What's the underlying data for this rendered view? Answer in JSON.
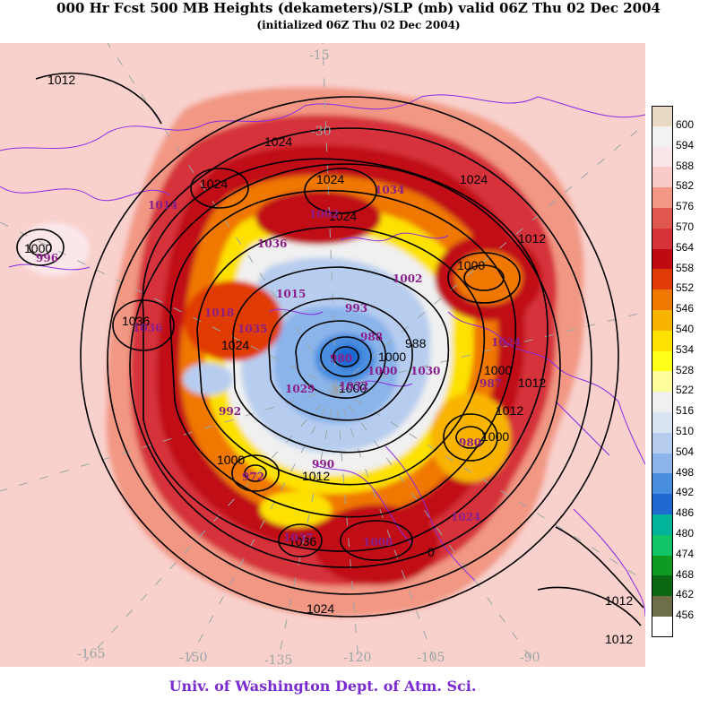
{
  "title": "000 Hr Fcst 500 MB Heights (dekameters)/SLP (mb) valid 06Z Thu 02 Dec 2004",
  "subtitle": "(initialized 06Z Thu 02 Dec 2004)",
  "credit": "Univ. of Washington Dept. of Atm. Sci.",
  "legend": {
    "items": [
      {
        "label": "600",
        "color": "#ead9c4"
      },
      {
        "label": "594",
        "color": "#f2f2f2"
      },
      {
        "label": "588",
        "color": "#fbe7ea"
      },
      {
        "label": "582",
        "color": "#f8cbc8"
      },
      {
        "label": "576",
        "color": "#f29784"
      },
      {
        "label": "570",
        "color": "#e0574f"
      },
      {
        "label": "564",
        "color": "#d6333a"
      },
      {
        "label": "558",
        "color": "#c00a12"
      },
      {
        "label": "552",
        "color": "#e03a06"
      },
      {
        "label": "546",
        "color": "#f07800"
      },
      {
        "label": "540",
        "color": "#f8b400"
      },
      {
        "label": "534",
        "color": "#fde100"
      },
      {
        "label": "528",
        "color": "#ffff1a"
      },
      {
        "label": "522",
        "color": "#fdfd9c"
      },
      {
        "label": "516",
        "color": "#f0f0f0"
      },
      {
        "label": "510",
        "color": "#d9e4f2"
      },
      {
        "label": "504",
        "color": "#b7cdef"
      },
      {
        "label": "498",
        "color": "#8bb4ea"
      },
      {
        "label": "492",
        "color": "#4a8ee0"
      },
      {
        "label": "486",
        "color": "#1f6ad1"
      },
      {
        "label": "480",
        "color": "#00b49c"
      },
      {
        "label": "474",
        "color": "#12c468"
      },
      {
        "label": "468",
        "color": "#0f9a22"
      },
      {
        "label": "462",
        "color": "#0b6813"
      },
      {
        "label": "456",
        "color": "#6e6e48"
      },
      {
        "label": "",
        "color": "#ffffff"
      }
    ]
  },
  "slp_labels": [
    {
      "text": "1012"
    },
    {
      "text": "1024"
    },
    {
      "text": "1024"
    },
    {
      "text": "1024"
    },
    {
      "text": "1024"
    },
    {
      "text": "1024"
    },
    {
      "text": "1012"
    },
    {
      "text": "1000"
    },
    {
      "text": "1000"
    },
    {
      "text": "1036"
    },
    {
      "text": "1024"
    },
    {
      "text": "988"
    },
    {
      "text": "1000"
    },
    {
      "text": "1000"
    },
    {
      "text": "1012"
    },
    {
      "text": "1012"
    },
    {
      "text": "1000"
    },
    {
      "text": "1000"
    },
    {
      "text": "1012"
    },
    {
      "text": "1036"
    },
    {
      "text": "1024"
    },
    {
      "text": "1012"
    },
    {
      "text": "1012"
    },
    {
      "text": "0"
    },
    {
      "text": "1000"
    }
  ],
  "pressure_centers": [
    {
      "text": "1014"
    },
    {
      "text": "996"
    },
    {
      "text": "1036"
    },
    {
      "text": "1036"
    },
    {
      "text": "1018"
    },
    {
      "text": "1035"
    },
    {
      "text": "1015"
    },
    {
      "text": "1002"
    },
    {
      "text": "1034"
    },
    {
      "text": "1002"
    },
    {
      "text": "993"
    },
    {
      "text": "988"
    },
    {
      "text": "980"
    },
    {
      "text": "1000"
    },
    {
      "text": "1029"
    },
    {
      "text": "992"
    },
    {
      "text": "972"
    },
    {
      "text": "990"
    },
    {
      "text": "1032"
    },
    {
      "text": "1030"
    },
    {
      "text": "1024"
    },
    {
      "text": "987"
    },
    {
      "text": "1037"
    },
    {
      "text": "1008"
    },
    {
      "text": "1024"
    },
    {
      "text": "980"
    }
  ],
  "longitude_labels": [
    {
      "text": "-165"
    },
    {
      "text": "-150"
    },
    {
      "text": "-135"
    },
    {
      "text": "-120"
    },
    {
      "text": "-105"
    },
    {
      "text": "-90"
    },
    {
      "text": "-15"
    },
    {
      "text": "-30"
    }
  ]
}
